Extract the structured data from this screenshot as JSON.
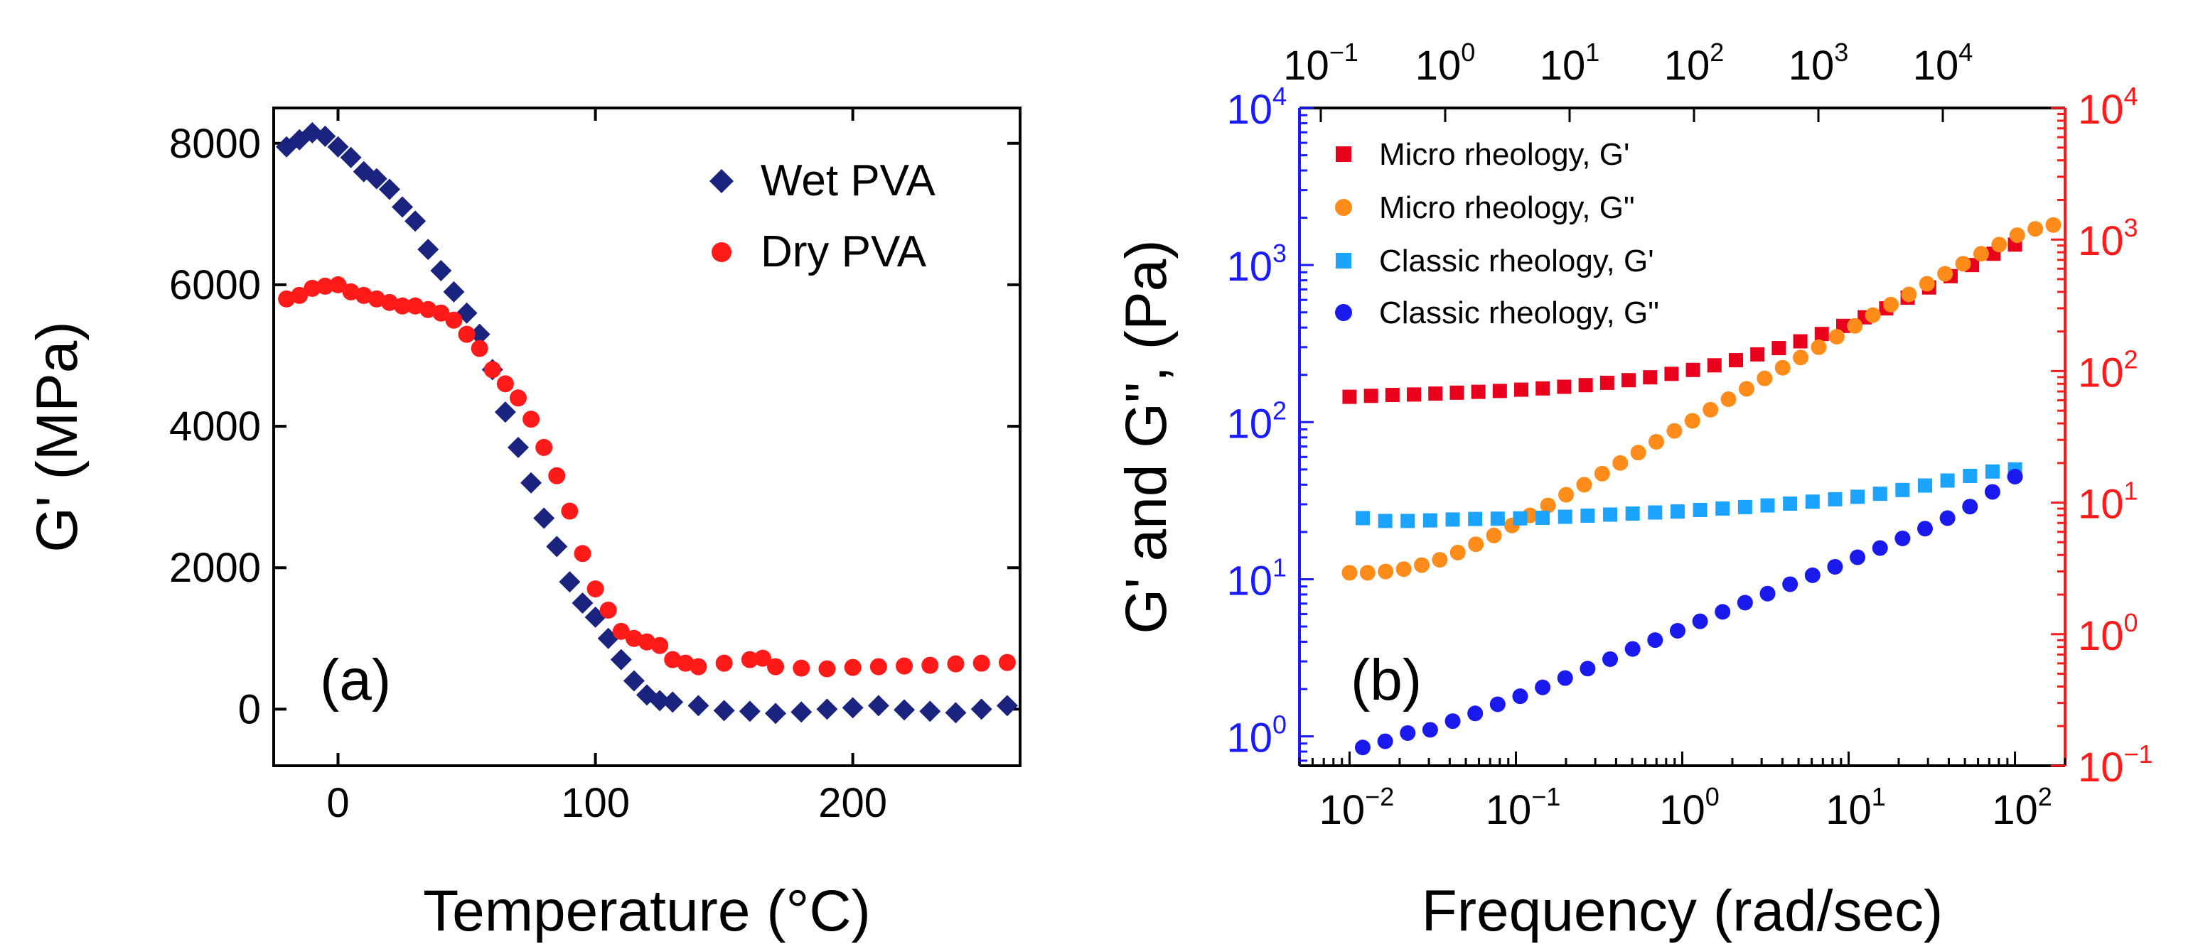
{
  "chart_data": [
    {
      "panel": "(a)",
      "type": "scatter",
      "xlabel": "Temperature (°C)",
      "ylabel": "G' (MPa)",
      "xlim": [
        -25,
        265
      ],
      "ylim": [
        -800,
        8500
      ],
      "xticks": [
        0,
        100,
        200
      ],
      "yticks": [
        0,
        2000,
        4000,
        6000,
        8000
      ],
      "legend_position": "top-right",
      "series": [
        {
          "name": "Wet PVA",
          "marker": "diamond",
          "color": "#1a237e",
          "x": [
            -20,
            -15,
            -10,
            -5,
            0,
            5,
            10,
            15,
            20,
            25,
            30,
            35,
            40,
            45,
            50,
            55,
            60,
            65,
            70,
            75,
            80,
            85,
            90,
            95,
            100,
            105,
            110,
            115,
            120,
            125,
            130,
            140,
            150,
            160,
            170,
            180,
            190,
            200,
            210,
            220,
            230,
            240,
            250,
            260
          ],
          "y": [
            7950,
            8050,
            8150,
            8100,
            7950,
            7800,
            7600,
            7500,
            7350,
            7100,
            6900,
            6500,
            6200,
            5900,
            5600,
            5300,
            4800,
            4200,
            3700,
            3200,
            2700,
            2300,
            1800,
            1500,
            1300,
            1000,
            700,
            400,
            200,
            120,
            100,
            50,
            -20,
            -30,
            -60,
            -40,
            0,
            20,
            50,
            -10,
            -30,
            -50,
            0,
            50
          ]
        },
        {
          "name": "Dry PVA",
          "marker": "circle",
          "color": "#ff1a1a",
          "x": [
            -20,
            -15,
            -10,
            -5,
            0,
            5,
            10,
            15,
            20,
            25,
            30,
            35,
            40,
            45,
            50,
            55,
            60,
            65,
            70,
            75,
            80,
            85,
            90,
            95,
            100,
            105,
            110,
            115,
            120,
            125,
            130,
            135,
            140,
            150,
            160,
            165,
            170,
            180,
            190,
            200,
            210,
            220,
            230,
            240,
            250,
            260
          ],
          "y": [
            5800,
            5850,
            5950,
            5980,
            6000,
            5900,
            5850,
            5800,
            5750,
            5700,
            5700,
            5650,
            5600,
            5500,
            5300,
            5100,
            4800,
            4600,
            4400,
            4100,
            3700,
            3300,
            2800,
            2200,
            1700,
            1400,
            1100,
            1000,
            950,
            900,
            700,
            650,
            600,
            650,
            700,
            720,
            600,
            580,
            570,
            590,
            600,
            610,
            620,
            640,
            650,
            660
          ]
        }
      ]
    },
    {
      "panel": "(b)",
      "type": "scatter",
      "xscale": "log",
      "yscale": "log",
      "xlabel": "Frequency (rad/sec)",
      "ylabel": "G' and G\", (Pa)",
      "xlim": [
        0.005,
        200
      ],
      "ylim_left": [
        0.65,
        10000
      ],
      "ylim_right": [
        0.1,
        10000
      ],
      "top_axis_ticks": [
        "10^-1",
        "10^0",
        "10^1",
        "10^2",
        "10^3",
        "10^4"
      ],
      "bottom_ticks": [
        "10^-2",
        "10^-1",
        "10^0",
        "10^1",
        "10^2"
      ],
      "left_ticks": [
        "10^0",
        "10^1",
        "10^2",
        "10^3",
        "10^4"
      ],
      "right_ticks": [
        "10^-1",
        "10^0",
        "10^1",
        "10^2",
        "10^3",
        "10^4"
      ],
      "left_axis_color": "#1a1aff",
      "right_axis_color": "#ff1a1a",
      "legend_position": "top-left",
      "series": [
        {
          "name": "Micro rheology, G'",
          "marker": "square",
          "color": "#e8001c",
          "x_range": [
            0.01,
            100
          ],
          "n_points": 32,
          "y_values": [
            145,
            147,
            149,
            150,
            152,
            154,
            156,
            158,
            161,
            164,
            168,
            172,
            178,
            185,
            193,
            203,
            215,
            230,
            248,
            270,
            296,
            327,
            364,
            410,
            465,
            530,
            620,
            720,
            850,
            1000,
            1180,
            1350
          ]
        },
        {
          "name": "Micro rheology, G\"",
          "marker": "circle",
          "color": "#ff8c1a",
          "x_range": [
            0.01,
            170
          ],
          "n_points": 40,
          "y_values": [
            11,
            11,
            11.2,
            11.6,
            12.3,
            13.3,
            14.8,
            16.7,
            19,
            22,
            25.5,
            29.5,
            34.5,
            40,
            47,
            55,
            64,
            75,
            88,
            102,
            120,
            140,
            163,
            190,
            222,
            258,
            300,
            350,
            410,
            480,
            560,
            650,
            760,
            880,
            1020,
            1180,
            1350,
            1550,
            1700,
            1800
          ]
        },
        {
          "name": "Classic rheology, G'",
          "marker": "square",
          "color": "#1aa3ff",
          "x_range": [
            0.012,
            100
          ],
          "n_points": 30,
          "y_values": [
            24.5,
            23.5,
            23.5,
            23.7,
            24,
            24.2,
            24.3,
            24.4,
            24.6,
            25,
            25.4,
            25.8,
            26.2,
            26.6,
            27,
            27.6,
            28.2,
            28.8,
            29.5,
            30.3,
            31.2,
            32.3,
            33.5,
            35,
            37,
            39.5,
            42.5,
            45.5,
            48.5,
            50
          ]
        },
        {
          "name": "Classic rheology, G\"",
          "marker": "circle",
          "color": "#1a1aee",
          "x_range": [
            0.012,
            100
          ],
          "n_points": 30,
          "y_values": [
            0.85,
            0.93,
            1.05,
            1.1,
            1.25,
            1.4,
            1.6,
            1.8,
            2.05,
            2.35,
            2.7,
            3.1,
            3.6,
            4.1,
            4.7,
            5.4,
            6.2,
            7.1,
            8.1,
            9.3,
            10.6,
            12,
            13.8,
            15.8,
            18.2,
            21,
            24.5,
            29,
            36,
            45
          ]
        }
      ]
    }
  ]
}
